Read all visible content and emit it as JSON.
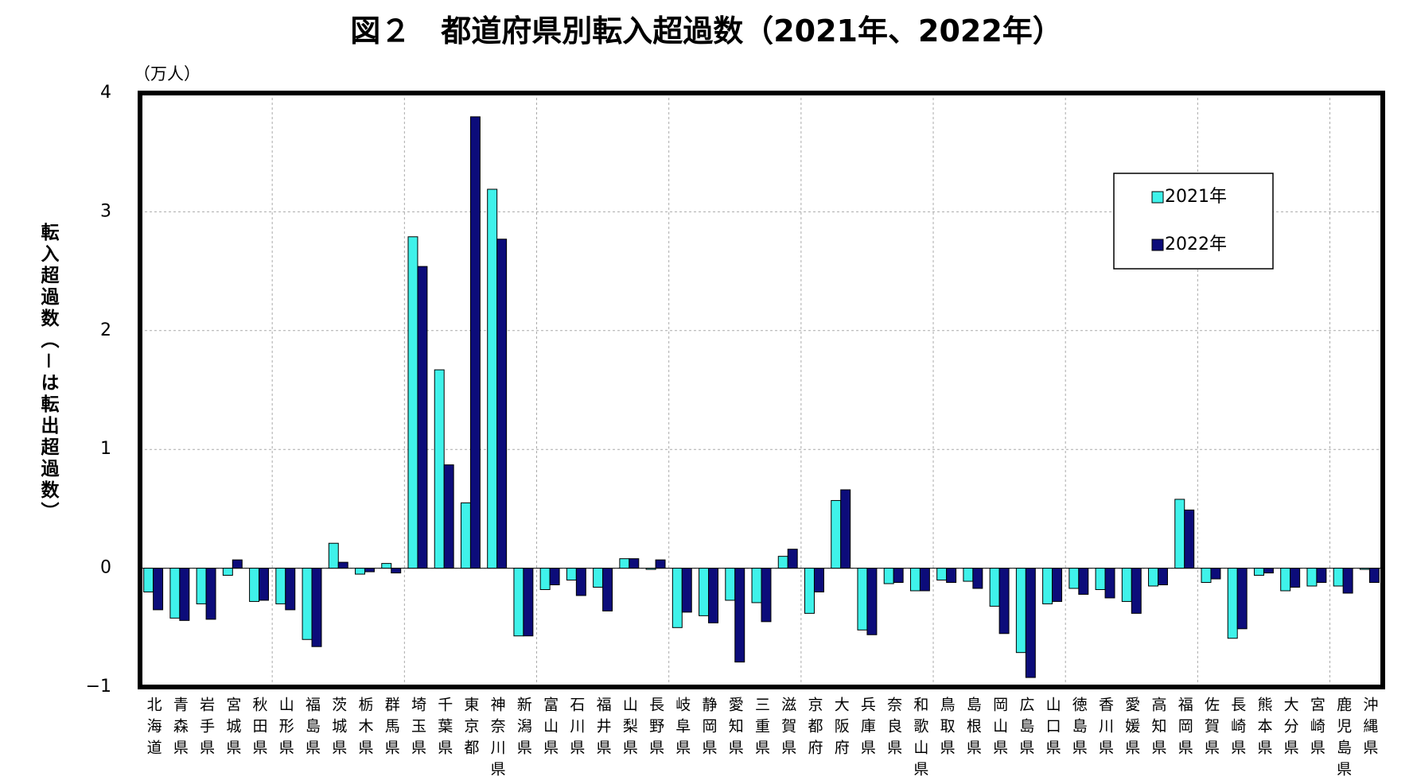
{
  "chart_data": {
    "type": "bar",
    "title": "図２　都道府県別転入超過数（2021年、2022年）",
    "y_unit": "（万人）",
    "y_label": "転入超過数（－は転出超過数）",
    "categories": [
      "北海道",
      "青森県",
      "岩手県",
      "宮城県",
      "秋田県",
      "山形県",
      "福島県",
      "茨城県",
      "栃木県",
      "群馬県",
      "埼玉県",
      "千葉県",
      "東京都",
      "神奈川県",
      "新潟県",
      "富山県",
      "石川県",
      "福井県",
      "山梨県",
      "長野県",
      "岐阜県",
      "静岡県",
      "愛知県",
      "三重県",
      "滋賀県",
      "京都府",
      "大阪府",
      "兵庫県",
      "奈良県",
      "和歌山県",
      "鳥取県",
      "島根県",
      "岡山県",
      "広島県",
      "山口県",
      "徳島県",
      "香川県",
      "愛媛県",
      "高知県",
      "福岡県",
      "佐賀県",
      "長崎県",
      "熊本県",
      "大分県",
      "宮崎県",
      "鹿児島県",
      "沖縄県"
    ],
    "series": [
      {
        "name": "2021年",
        "color": "#3ff2ea",
        "values": [
          -0.2,
          -0.42,
          -0.3,
          -0.06,
          -0.28,
          -0.3,
          -0.6,
          0.21,
          -0.05,
          0.04,
          2.79,
          1.67,
          0.55,
          3.19,
          -0.57,
          -0.18,
          -0.1,
          -0.16,
          0.08,
          -0.01,
          -0.5,
          -0.4,
          -0.27,
          -0.29,
          0.1,
          -0.38,
          0.57,
          -0.52,
          -0.13,
          -0.19,
          -0.1,
          -0.11,
          -0.32,
          -0.71,
          -0.3,
          -0.17,
          -0.18,
          -0.28,
          -0.15,
          0.58,
          -0.12,
          -0.59,
          -0.06,
          -0.19,
          -0.15,
          -0.15,
          -0.01
        ]
      },
      {
        "name": "2022年",
        "color": "#0c0c7a",
        "values": [
          -0.35,
          -0.44,
          -0.43,
          0.07,
          -0.27,
          -0.35,
          -0.66,
          0.05,
          -0.03,
          -0.04,
          2.54,
          0.87,
          3.8,
          2.77,
          -0.57,
          -0.14,
          -0.23,
          -0.36,
          0.08,
          0.07,
          -0.37,
          -0.46,
          -0.79,
          -0.45,
          0.16,
          -0.2,
          0.66,
          -0.56,
          -0.12,
          -0.19,
          -0.12,
          -0.17,
          -0.55,
          -0.92,
          -0.28,
          -0.22,
          -0.25,
          -0.38,
          -0.14,
          0.49,
          -0.09,
          -0.51,
          -0.04,
          -0.16,
          -0.12,
          -0.21,
          -0.12
        ]
      }
    ],
    "ylim": [
      -1,
      4
    ],
    "yticks": [
      {
        "value": -1,
        "label": "−1"
      },
      0,
      1,
      2,
      3,
      4
    ],
    "grid": true,
    "legend": "upper right"
  }
}
